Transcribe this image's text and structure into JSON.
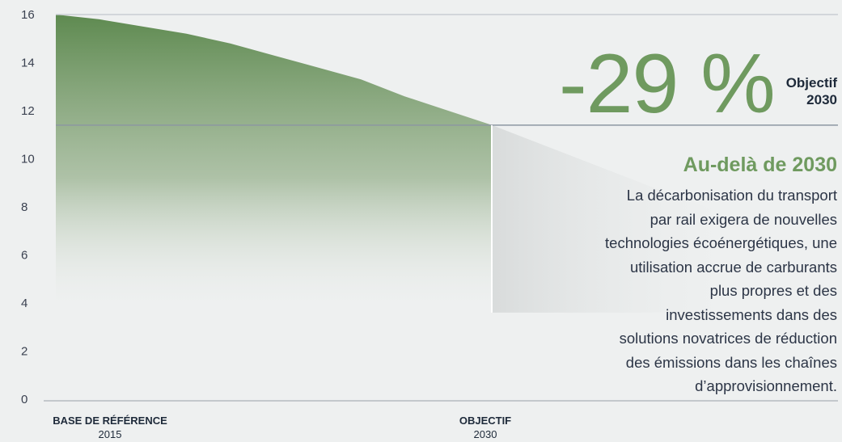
{
  "chart_data": {
    "type": "area",
    "ylim": [
      0,
      16
    ],
    "yticks": [
      0,
      2,
      4,
      6,
      8,
      10,
      12,
      14,
      16
    ],
    "x_points": [
      {
        "label": "BASE DE RÉFÉRENCE",
        "sublabel": "2015"
      },
      {
        "label": "OBJECTIF",
        "sublabel": "2030"
      }
    ],
    "start_value": 16,
    "target_value": 11.4,
    "curve_x": [
      0,
      0.1,
      0.2,
      0.3,
      0.4,
      0.5,
      0.6,
      0.7,
      0.8,
      0.9,
      1.0,
      1.2,
      1.4,
      1.6
    ],
    "curve_y": [
      16,
      15.8,
      15.5,
      15.2,
      14.8,
      14.3,
      13.8,
      13.3,
      12.6,
      12.0,
      11.4,
      10.0,
      8.6,
      7.3
    ],
    "colors": {
      "fill": "#5e8a50",
      "projection": "#d9dcdc",
      "line": "#8d97a2"
    }
  },
  "headline": {
    "value": "-29 %",
    "label_line1": "Objectif",
    "label_line2": "2030"
  },
  "aside": {
    "title": "Au-delà de 2030",
    "lines": [
      "La décarbonisation du transport",
      "par rail exigera de nouvelles",
      "technologies écoénergétiques, une",
      "utilisation accrue de carburants",
      "plus propres et des",
      "investissements dans des",
      "solutions novatrices de réduction",
      "des émissions dans les chaînes",
      "d’approvisionnement."
    ]
  }
}
